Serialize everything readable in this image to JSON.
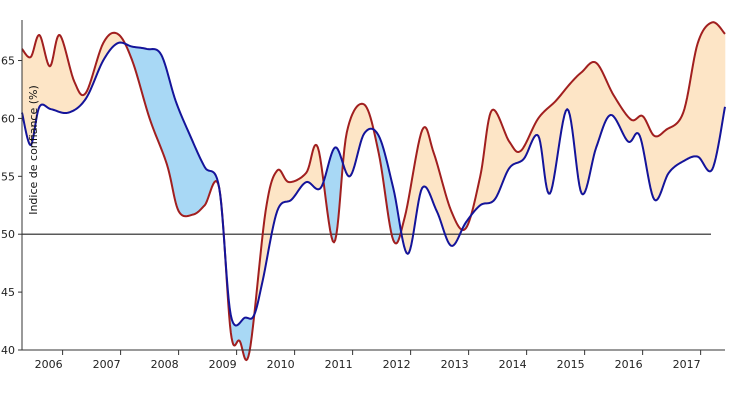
{
  "chart_data": {
    "type": "line",
    "title": "",
    "ylabel": "Indice de confiance (%)",
    "xlabel": "",
    "ylim": [
      40,
      68.5
    ],
    "xlim": [
      2005.3,
      2017.42
    ],
    "yticks": [
      40,
      45,
      50,
      55,
      60,
      65
    ],
    "xticks": [
      {
        "value": 2006,
        "label": "2006"
      },
      {
        "value": 2007,
        "label": "2007"
      },
      {
        "value": 2008,
        "label": "2008"
      },
      {
        "value": 2009,
        "label": "2009"
      },
      {
        "value": 2010,
        "label": "2010"
      },
      {
        "value": 2011,
        "label": "2011"
      },
      {
        "value": 2012,
        "label": "2012"
      },
      {
        "value": 2013,
        "label": "2013"
      },
      {
        "value": 2014,
        "label": "2014"
      },
      {
        "value": 2015,
        "label": "2015"
      },
      {
        "value": 2016,
        "label": "2016"
      },
      {
        "value": 2017,
        "label": "2017"
      }
    ],
    "reference_line": {
      "y": 50,
      "color": "#222222"
    },
    "fill_colors": {
      "red_above": "#fde5c6",
      "blue_above": "#a8d8f5"
    },
    "series": [
      {
        "color": "#a11f1f",
        "points": [
          [
            2005.3,
            66.0
          ],
          [
            2005.45,
            65.3
          ],
          [
            2005.6,
            67.2
          ],
          [
            2005.78,
            64.5
          ],
          [
            2005.95,
            67.2
          ],
          [
            2006.2,
            63.2
          ],
          [
            2006.4,
            62.2
          ],
          [
            2006.7,
            66.5
          ],
          [
            2006.95,
            67.3
          ],
          [
            2007.2,
            65.0
          ],
          [
            2007.5,
            60.0
          ],
          [
            2007.8,
            56.0
          ],
          [
            2008.0,
            52.0
          ],
          [
            2008.25,
            51.7
          ],
          [
            2008.45,
            52.5
          ],
          [
            2008.7,
            54.0
          ],
          [
            2008.9,
            41.5
          ],
          [
            2009.05,
            40.8
          ],
          [
            2009.22,
            39.8
          ],
          [
            2009.5,
            52.0
          ],
          [
            2009.7,
            55.5
          ],
          [
            2009.9,
            54.5
          ],
          [
            2010.2,
            55.3
          ],
          [
            2010.4,
            57.5
          ],
          [
            2010.68,
            49.3
          ],
          [
            2010.9,
            58.8
          ],
          [
            2011.2,
            61.2
          ],
          [
            2011.45,
            57.0
          ],
          [
            2011.7,
            49.5
          ],
          [
            2011.9,
            51.5
          ],
          [
            2012.2,
            59.0
          ],
          [
            2012.4,
            57.0
          ],
          [
            2012.7,
            52.0
          ],
          [
            2012.95,
            50.5
          ],
          [
            2013.2,
            55.0
          ],
          [
            2013.4,
            60.7
          ],
          [
            2013.7,
            58.0
          ],
          [
            2013.9,
            57.2
          ],
          [
            2014.2,
            60.0
          ],
          [
            2014.5,
            61.5
          ],
          [
            2014.75,
            63.0
          ],
          [
            2014.95,
            64.0
          ],
          [
            2015.2,
            64.8
          ],
          [
            2015.5,
            62.0
          ],
          [
            2015.8,
            59.9
          ],
          [
            2016.0,
            60.2
          ],
          [
            2016.2,
            58.5
          ],
          [
            2016.4,
            59.0
          ],
          [
            2016.7,
            60.5
          ],
          [
            2016.95,
            66.5
          ],
          [
            2017.2,
            68.3
          ],
          [
            2017.42,
            67.3
          ]
        ]
      },
      {
        "color": "#14149a",
        "points": [
          [
            2005.3,
            60.5
          ],
          [
            2005.45,
            57.7
          ],
          [
            2005.6,
            61.0
          ],
          [
            2005.8,
            60.8
          ],
          [
            2006.1,
            60.5
          ],
          [
            2006.4,
            61.7
          ],
          [
            2006.7,
            65.0
          ],
          [
            2006.95,
            66.5
          ],
          [
            2007.2,
            66.2
          ],
          [
            2007.45,
            66.0
          ],
          [
            2007.7,
            65.5
          ],
          [
            2007.95,
            61.5
          ],
          [
            2008.2,
            58.5
          ],
          [
            2008.45,
            55.8
          ],
          [
            2008.7,
            54.0
          ],
          [
            2008.9,
            43.0
          ],
          [
            2009.15,
            42.8
          ],
          [
            2009.3,
            43.0
          ],
          [
            2009.45,
            46.0
          ],
          [
            2009.7,
            52.0
          ],
          [
            2009.95,
            53.0
          ],
          [
            2010.2,
            54.5
          ],
          [
            2010.45,
            54.0
          ],
          [
            2010.7,
            57.5
          ],
          [
            2010.95,
            55.0
          ],
          [
            2011.2,
            58.7
          ],
          [
            2011.45,
            58.5
          ],
          [
            2011.7,
            54.0
          ],
          [
            2011.95,
            48.3
          ],
          [
            2012.2,
            54.0
          ],
          [
            2012.45,
            52.0
          ],
          [
            2012.7,
            49.0
          ],
          [
            2012.95,
            51.0
          ],
          [
            2013.2,
            52.5
          ],
          [
            2013.45,
            53.0
          ],
          [
            2013.7,
            55.7
          ],
          [
            2013.95,
            56.5
          ],
          [
            2014.2,
            58.5
          ],
          [
            2014.4,
            53.5
          ],
          [
            2014.7,
            60.8
          ],
          [
            2014.95,
            53.5
          ],
          [
            2015.2,
            57.5
          ],
          [
            2015.45,
            60.3
          ],
          [
            2015.75,
            58.0
          ],
          [
            2015.95,
            58.5
          ],
          [
            2016.2,
            53.0
          ],
          [
            2016.45,
            55.3
          ],
          [
            2016.7,
            56.3
          ],
          [
            2016.95,
            56.7
          ],
          [
            2017.2,
            55.6
          ],
          [
            2017.42,
            61.0
          ]
        ]
      }
    ]
  }
}
